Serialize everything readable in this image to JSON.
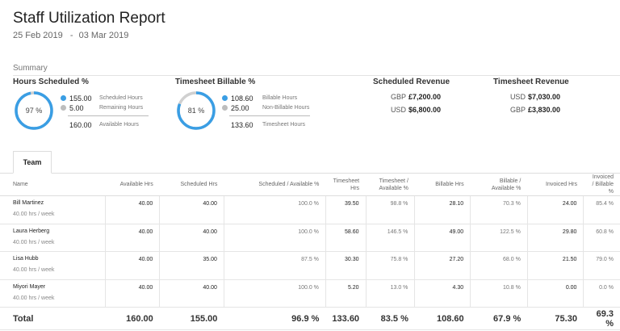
{
  "header": {
    "title": "Staff Utilization Report",
    "date_start": "25 Feb 2019",
    "date_sep": "-",
    "date_end": "03 Mar 2019"
  },
  "summary": {
    "label": "Summary",
    "hours_scheduled": {
      "title": "Hours Scheduled %",
      "percent_label": "97 %",
      "percent_value": 0.97,
      "rows": [
        {
          "value": "155.00",
          "label": "Scheduled Hours",
          "color": "#3a9ee4"
        },
        {
          "value": "5.00",
          "label": "Remaining Hours",
          "color": "#bdbdbd"
        }
      ],
      "total_value": "160.00",
      "total_label": "Available Hours"
    },
    "timesheet_billable": {
      "title": "Timesheet Billable %",
      "percent_label": "81 %",
      "percent_value": 0.81,
      "rows": [
        {
          "value": "108.60",
          "label": "Billable Hours",
          "color": "#3a9ee4"
        },
        {
          "value": "25.00",
          "label": "Non-Billable Hours",
          "color": "#bdbdbd"
        }
      ],
      "total_value": "133.60",
      "total_label": "Timesheet Hours"
    },
    "scheduled_revenue": {
      "title": "Scheduled Revenue",
      "rows": [
        {
          "currency": "GBP",
          "amount": "£7,200.00"
        },
        {
          "currency": "USD",
          "amount": "$6,800.00"
        }
      ]
    },
    "timesheet_revenue": {
      "title": "Timesheet Revenue",
      "rows": [
        {
          "currency": "USD",
          "amount": "$7,030.00"
        },
        {
          "currency": "GBP",
          "amount": "£3,830.00"
        }
      ]
    }
  },
  "tabs": [
    {
      "label": "Team"
    }
  ],
  "table": {
    "columns": [
      "Name",
      "Available Hrs",
      "Scheduled Hrs",
      "Scheduled / Available %",
      "Timesheet Hrs",
      "Timesheet / Available %",
      "Billable Hrs",
      "Billable / Available %",
      "Invoiced Hrs",
      "Invoiced / Billable %"
    ],
    "rows": [
      {
        "name": "Bill Martinez",
        "hours_week": "40.00 hrs / week",
        "cells": [
          "40.00",
          "40.00",
          "100.0 %",
          "39.50",
          "98.8 %",
          "28.10",
          "70.3 %",
          "24.00",
          "85.4 %"
        ]
      },
      {
        "name": "Laura Herberg",
        "hours_week": "40.00 hrs / week",
        "cells": [
          "40.00",
          "40.00",
          "100.0 %",
          "58.60",
          "146.5 %",
          "49.00",
          "122.5 %",
          "29.80",
          "60.8 %"
        ]
      },
      {
        "name": "Lisa Hubb",
        "hours_week": "40.00 hrs / week",
        "cells": [
          "40.00",
          "35.00",
          "87.5 %",
          "30.30",
          "75.8 %",
          "27.20",
          "68.0 %",
          "21.50",
          "79.0 %"
        ]
      },
      {
        "name": "Miyori Mayer",
        "hours_week": "40.00 hrs / week",
        "cells": [
          "40.00",
          "40.00",
          "100.0 %",
          "5.20",
          "13.0 %",
          "4.30",
          "10.8 %",
          "0.00",
          "0.0 %"
        ]
      }
    ],
    "total": {
      "label": "Total",
      "cells": [
        "160.00",
        "155.00",
        "96.9 %",
        "133.60",
        "83.5 %",
        "108.60",
        "67.9 %",
        "75.30",
        "69.3 %"
      ]
    }
  },
  "colors": {
    "accent": "#3a9ee4",
    "track": "#d0d0d0"
  }
}
